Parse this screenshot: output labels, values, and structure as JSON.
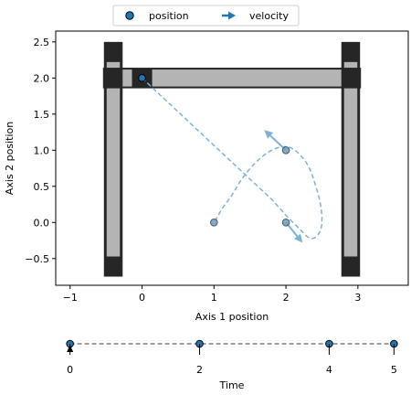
{
  "legend": {
    "position_label": "position",
    "velocity_label": "velocity",
    "placement": "top-center"
  },
  "colors": {
    "marker": "#1f77b4",
    "frame_fill": "#b4b4b4",
    "frame_stroke": "#262626",
    "trajectory": "#7ab3d8",
    "timeline": "#808080"
  },
  "chart_data": [
    {
      "type": "scatter",
      "title": "",
      "xlabel": "Axis 1 position",
      "ylabel": "Axis 2 position",
      "xlim": [
        -1.2,
        3.7
      ],
      "ylim": [
        -0.87,
        2.65
      ],
      "xticks": [
        -1,
        0,
        1,
        2,
        3
      ],
      "xtick_labels": [
        "−1",
        "0",
        "1",
        "2",
        "3"
      ],
      "yticks": [
        -0.5,
        0.0,
        0.5,
        1.0,
        1.5,
        2.0,
        2.5
      ],
      "ytick_labels": [
        "−0.5",
        "0.0",
        "0.5",
        "1.0",
        "1.5",
        "2.0",
        "2.5"
      ],
      "grid": false,
      "gantry": {
        "left_rail_x": -0.4,
        "right_rail_x": 2.9,
        "rail_width": 0.26,
        "rail_y_range": [
          -0.75,
          2.5
        ],
        "bridge_y": 2.0,
        "bridge_height": 0.26,
        "carriage": {
          "x": 0.0,
          "y": 2.0
        }
      },
      "positions": [
        {
          "x": 0.0,
          "y": 2.0
        },
        {
          "x": 1.0,
          "y": 0.0
        },
        {
          "x": 2.0,
          "y": 1.0
        },
        {
          "x": 2.0,
          "y": 0.0
        }
      ],
      "velocities": [
        {
          "from": [
            2.0,
            1.0
          ],
          "to": [
            1.7,
            1.28
          ]
        },
        {
          "from": [
            2.0,
            0.0
          ],
          "to": [
            2.23,
            -0.28
          ]
        }
      ],
      "trajectory": [
        [
          0.0,
          2.0
        ],
        [
          0.3,
          1.72
        ],
        [
          0.6,
          1.44
        ],
        [
          0.9,
          1.16
        ],
        [
          1.2,
          0.88
        ],
        [
          1.5,
          0.6
        ],
        [
          1.8,
          0.32
        ],
        [
          2.0,
          0.1
        ],
        [
          2.2,
          -0.1
        ],
        [
          2.3,
          -0.2
        ],
        [
          2.38,
          -0.22
        ],
        [
          2.46,
          -0.15
        ],
        [
          2.5,
          0.0
        ],
        [
          2.48,
          0.25
        ],
        [
          2.4,
          0.55
        ],
        [
          2.3,
          0.8
        ],
        [
          2.15,
          0.98
        ],
        [
          2.0,
          1.05
        ],
        [
          1.8,
          1.0
        ],
        [
          1.6,
          0.85
        ],
        [
          1.4,
          0.62
        ],
        [
          1.25,
          0.38
        ],
        [
          1.12,
          0.2
        ],
        [
          1.0,
          0.0
        ]
      ]
    },
    {
      "type": "scatter",
      "title": "",
      "xlabel": "Time",
      "xlim": [
        -0.15,
        5.15
      ],
      "xticks": [
        0,
        2,
        4,
        5
      ],
      "xtick_labels": [
        "0",
        "2",
        "4",
        "5"
      ],
      "keyframes": [
        0,
        2,
        4,
        5
      ],
      "current_time": 0
    }
  ]
}
